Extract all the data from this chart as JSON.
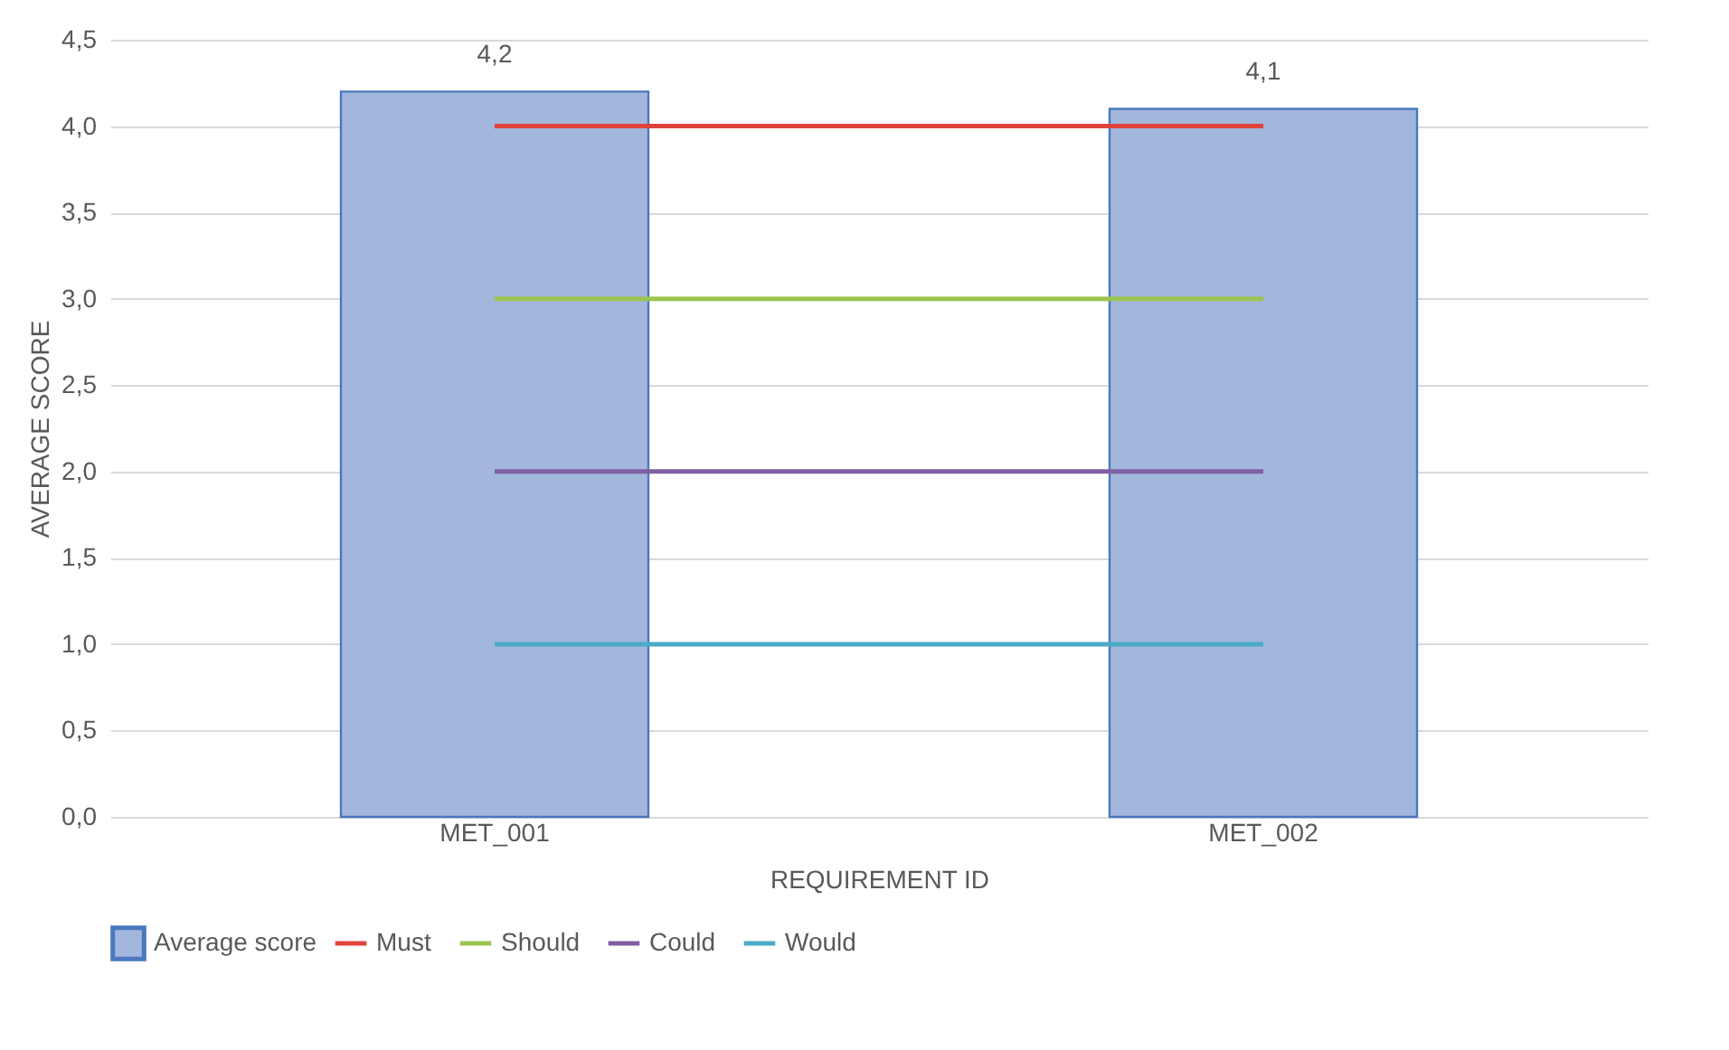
{
  "chart_data": {
    "type": "bar",
    "xlabel": "REQUIREMENT ID",
    "ylabel": "AVERAGE SCORE",
    "categories": [
      "MET_001",
      "MET_002"
    ],
    "series": [
      {
        "name": "Average score",
        "type": "bar",
        "color": "#a3b6dc",
        "values": [
          4.2,
          4.1
        ],
        "value_labels": [
          "4,2",
          "4,1"
        ]
      },
      {
        "name": "Must",
        "type": "line",
        "color": "#e0433b",
        "values": [
          4.0,
          4.0
        ]
      },
      {
        "name": "Should",
        "type": "line",
        "color": "#9bc54f",
        "values": [
          3.0,
          3.0
        ]
      },
      {
        "name": "Could",
        "type": "line",
        "color": "#7f60a2",
        "values": [
          2.0,
          2.0
        ]
      },
      {
        "name": "Would",
        "type": "line",
        "color": "#4aacc6",
        "values": [
          1.0,
          1.0
        ]
      }
    ],
    "ylim": [
      0,
      4.5
    ],
    "yticks": [
      {
        "value": 0,
        "label": "0,0"
      },
      {
        "value": 0.5,
        "label": "0,5"
      },
      {
        "value": 1,
        "label": "1,0"
      },
      {
        "value": 1.5,
        "label": "1,5"
      },
      {
        "value": 2,
        "label": "2,0"
      },
      {
        "value": 2.5,
        "label": "2,5"
      },
      {
        "value": 3,
        "label": "3,0"
      },
      {
        "value": 3.5,
        "label": "3,5"
      },
      {
        "value": 4,
        "label": "4,0"
      },
      {
        "value": 4.5,
        "label": "4,5"
      }
    ],
    "grid": "y",
    "legend": "bottom",
    "marker": "none",
    "line_style": "solid"
  }
}
